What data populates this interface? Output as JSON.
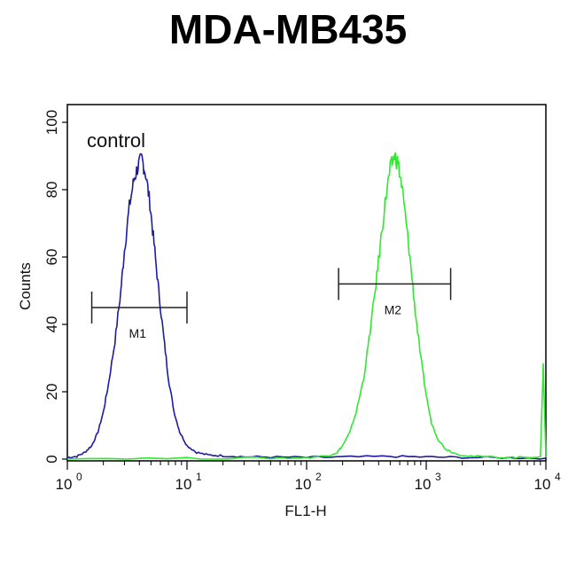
{
  "title": "MDA-MB435",
  "chart_data": {
    "type": "line",
    "xlabel": "FL1-H",
    "ylabel": "Counts",
    "x_scale": "log",
    "xlim": [
      1,
      10000
    ],
    "ylim": [
      0,
      100
    ],
    "x_ticks": [
      {
        "value": 1,
        "base": "10",
        "exp": "0"
      },
      {
        "value": 10,
        "base": "10",
        "exp": "1"
      },
      {
        "value": 100,
        "base": "10",
        "exp": "2"
      },
      {
        "value": 1000,
        "base": "10",
        "exp": "3"
      },
      {
        "value": 10000,
        "base": "10",
        "exp": "4"
      }
    ],
    "y_ticks": [
      "0",
      "20",
      "40",
      "60",
      "80",
      "100"
    ],
    "annotation": "control",
    "series": [
      {
        "color": "#1c1c9e",
        "points": [
          [
            1,
            0.5
          ],
          [
            1.2,
            0.8
          ],
          [
            1.4,
            2
          ],
          [
            1.6,
            4
          ],
          [
            1.8,
            8
          ],
          [
            2.0,
            14
          ],
          [
            2.2,
            22
          ],
          [
            2.5,
            35
          ],
          [
            2.8,
            50
          ],
          [
            3.0,
            62
          ],
          [
            3.3,
            75
          ],
          [
            3.6,
            83
          ],
          [
            3.9,
            87
          ],
          [
            4.2,
            89
          ],
          [
            4.5,
            85
          ],
          [
            4.9,
            76
          ],
          [
            5.3,
            64
          ],
          [
            5.8,
            50
          ],
          [
            6.4,
            36
          ],
          [
            7.0,
            24
          ],
          [
            7.8,
            14
          ],
          [
            8.7,
            8
          ],
          [
            10,
            4
          ],
          [
            12,
            2
          ],
          [
            15,
            1.2
          ],
          [
            20,
            1
          ],
          [
            30,
            0.7
          ],
          [
            50,
            0.6
          ],
          [
            100,
            0.5
          ],
          [
            200,
            0.6
          ],
          [
            500,
            0.8
          ],
          [
            1000,
            0.6
          ],
          [
            2000,
            0.5
          ],
          [
            5000,
            0.4
          ],
          [
            10000,
            0.3
          ]
        ]
      },
      {
        "color": "#33e633",
        "points": [
          [
            1,
            0.2
          ],
          [
            10,
            0.2
          ],
          [
            50,
            0.3
          ],
          [
            100,
            0.4
          ],
          [
            150,
            1
          ],
          [
            180,
            2
          ],
          [
            200,
            4
          ],
          [
            230,
            8
          ],
          [
            260,
            14
          ],
          [
            300,
            24
          ],
          [
            340,
            38
          ],
          [
            380,
            52
          ],
          [
            420,
            66
          ],
          [
            460,
            78
          ],
          [
            500,
            86
          ],
          [
            540,
            90
          ],
          [
            580,
            88
          ],
          [
            630,
            80
          ],
          [
            690,
            68
          ],
          [
            750,
            56
          ],
          [
            820,
            42
          ],
          [
            900,
            30
          ],
          [
            1000,
            19
          ],
          [
            1100,
            11
          ],
          [
            1250,
            6
          ],
          [
            1450,
            3
          ],
          [
            1800,
            1.5
          ],
          [
            2500,
            0.8
          ],
          [
            4000,
            0.5
          ],
          [
            6000,
            0.5
          ],
          [
            9000,
            0.8
          ],
          [
            9500,
            28
          ],
          [
            10000,
            0.5
          ]
        ]
      }
    ],
    "markers": [
      {
        "label": "M1",
        "x_start": 1.6,
        "x_end": 10,
        "y": 45
      },
      {
        "label": "M2",
        "x_start": 185,
        "x_end": 1600,
        "y": 52
      }
    ]
  }
}
